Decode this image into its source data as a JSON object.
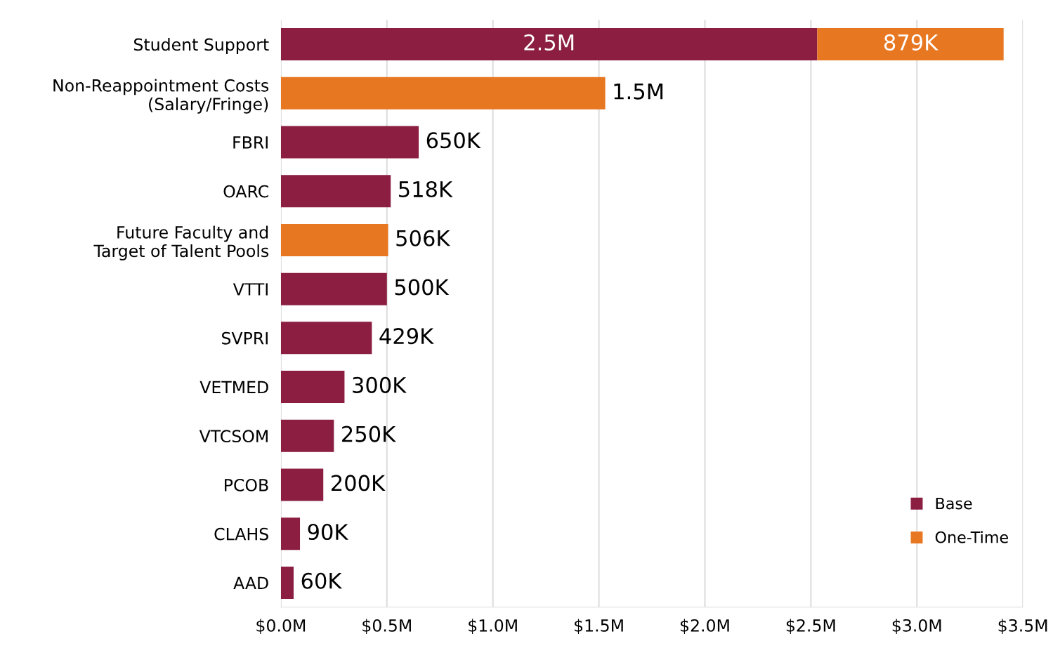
{
  "chart_data": {
    "type": "bar",
    "orientation": "horizontal",
    "stacked": true,
    "categories": [
      "Student Support",
      "Non-Reappointment Costs\n(Salary/Fringe)",
      "FBRI",
      "OARC",
      "Future Faculty and\nTarget of Talent Pools",
      "VTTI",
      "SVPRI",
      "VETMED",
      "VTCSOM",
      "PCOB",
      "CLAHS",
      "AAD"
    ],
    "series": [
      {
        "name": "Base",
        "color": "#8b1e41",
        "values": [
          2530000,
          null,
          650000,
          518000,
          null,
          500000,
          429000,
          300000,
          250000,
          200000,
          90000,
          60000
        ],
        "value_labels": [
          "2.5M",
          null,
          "650K",
          "518K",
          null,
          "500K",
          "429K",
          "300K",
          "250K",
          "200K",
          "90K",
          "60K"
        ]
      },
      {
        "name": "One-Time",
        "color": "#e87722",
        "values": [
          879000,
          1530000,
          null,
          null,
          506000,
          null,
          null,
          null,
          null,
          null,
          null,
          null
        ],
        "value_labels": [
          "879K",
          "1.5M",
          null,
          null,
          "506K",
          null,
          null,
          null,
          null,
          null,
          null,
          null
        ]
      }
    ],
    "xlim": [
      0,
      3500000
    ],
    "xticks": [
      {
        "value": 0,
        "label": "$0.0M"
      },
      {
        "value": 500000,
        "label": "$0.5M"
      },
      {
        "value": 1000000,
        "label": "$1.0M"
      },
      {
        "value": 1500000,
        "label": "$1.5M"
      },
      {
        "value": 2000000,
        "label": "$2.0M"
      },
      {
        "value": 2500000,
        "label": "$2.5M"
      },
      {
        "value": 3000000,
        "label": "$3.0M"
      },
      {
        "value": 3500000,
        "label": "$3.5M"
      }
    ],
    "grid": "x",
    "legend": "bottom right"
  }
}
